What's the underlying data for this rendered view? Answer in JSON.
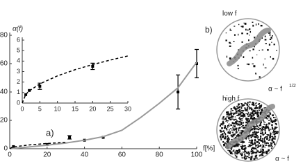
{
  "chart_data": [
    {
      "type": "scatter",
      "xlabel": "f[%]",
      "ylabel": "α(f)",
      "panel": "a)",
      "xlim": [
        0,
        100
      ],
      "xticks": [
        0,
        20,
        40,
        60,
        80,
        100
      ],
      "ylim": [
        0,
        80
      ],
      "yticks": [
        0,
        20,
        40,
        60,
        80
      ],
      "series": [
        {
          "style": "points",
          "color": "#000000",
          "x": [
            2,
            20,
            32,
            40,
            50,
            90,
            100
          ],
          "values": [
            1.5,
            3,
            8,
            6,
            8,
            40,
            60
          ],
          "errors": [
            null,
            null,
            1.2,
            null,
            null,
            12,
            10
          ]
        },
        {
          "style": "line",
          "color": "#9a9a9a",
          "x": [
            0,
            10,
            20,
            30,
            40,
            50,
            60,
            70,
            80,
            90,
            100
          ],
          "values": [
            0,
            1.2,
            2.5,
            4,
            6,
            8.5,
            13,
            22,
            32,
            43,
            61
          ]
        },
        {
          "style": "dashed",
          "color": "#000000",
          "x": [
            0,
            1,
            2,
            5,
            10,
            20,
            30
          ],
          "values": [
            0,
            0.8,
            1.2,
            1.8,
            2.6,
            3.7,
            4.5
          ]
        }
      ]
    },
    {
      "type": "scatter",
      "xlim": [
        0,
        30
      ],
      "xticks": [
        0,
        5,
        10,
        15,
        20,
        25,
        30
      ],
      "ylim": [
        0,
        6
      ],
      "yticks": [
        0,
        1,
        2,
        3,
        4,
        5,
        6
      ],
      "series": [
        {
          "style": "points",
          "color": "#000000",
          "x": [
            1,
            2,
            5,
            20
          ],
          "values": [
            0.8,
            1.2,
            1.6,
            3.5
          ],
          "errors": [
            null,
            null,
            0.3,
            0.3
          ]
        },
        {
          "style": "dashed",
          "color": "#000000",
          "x": [
            0,
            1,
            2,
            5,
            10,
            15,
            20,
            25,
            30
          ],
          "values": [
            0,
            0.82,
            1.16,
            1.83,
            2.59,
            3.18,
            3.67,
            4.1,
            4.49
          ]
        }
      ]
    }
  ],
  "panel_b": {
    "label": "b)",
    "low_title": "low f",
    "low_law": "α ~ f",
    "low_exp": "1/2",
    "high_title": "high f",
    "high_law": "α ~ f"
  }
}
